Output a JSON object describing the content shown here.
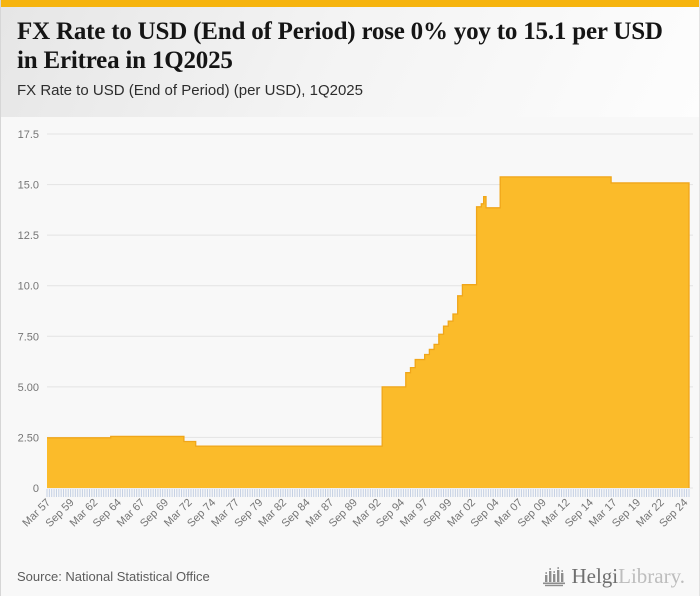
{
  "header": {
    "title": "FX Rate to USD (End of Period) rose 0% yoy to 15.1 per USD in Eritrea in 1Q2025",
    "subtitle": "FX Rate to USD (End of Period) (per USD), 1Q2025"
  },
  "footer": {
    "source": "Source: National Statistical Office",
    "brand": {
      "name": "Helgi",
      "suffix": "Library."
    }
  },
  "colors": {
    "accent_bar": "#F6B40E",
    "area_fill": "#FBBB2A",
    "area_stroke": "#F0A61A",
    "gridline": "#e3e3e3",
    "minor_tick": "#c3cfe3",
    "axis_label": "#757575",
    "logo_gray": "#8d8d8d"
  },
  "chart_data": {
    "type": "area",
    "title": "FX Rate to USD (End of Period) (per USD), 1Q2025",
    "xlabel": "",
    "ylabel": "per USD",
    "ylim": [
      0,
      17.5
    ],
    "x_range": [
      1957.25,
      2025.25
    ],
    "grid": true,
    "legend": "none",
    "y_ticks": [
      {
        "label": "0",
        "value": 0
      },
      {
        "label": "2.50",
        "value": 2.5
      },
      {
        "label": "5.00",
        "value": 5
      },
      {
        "label": "7.50",
        "value": 7.5
      },
      {
        "label": "10.0",
        "value": 10
      },
      {
        "label": "12.5",
        "value": 12.5
      },
      {
        "label": "15.0",
        "value": 15
      },
      {
        "label": "17.5",
        "value": 17.5
      }
    ],
    "x_ticks": [
      {
        "label": "Mar 57",
        "t": 1957.25
      },
      {
        "label": "Sep 59",
        "t": 1959.75
      },
      {
        "label": "Mar 62",
        "t": 1962.25
      },
      {
        "label": "Sep 64",
        "t": 1964.75
      },
      {
        "label": "Mar 67",
        "t": 1967.25
      },
      {
        "label": "Sep 69",
        "t": 1969.75
      },
      {
        "label": "Mar 72",
        "t": 1972.25
      },
      {
        "label": "Sep 74",
        "t": 1974.75
      },
      {
        "label": "Mar 77",
        "t": 1977.25
      },
      {
        "label": "Sep 79",
        "t": 1979.75
      },
      {
        "label": "Mar 82",
        "t": 1982.25
      },
      {
        "label": "Sep 84",
        "t": 1984.75
      },
      {
        "label": "Mar 87",
        "t": 1987.25
      },
      {
        "label": "Sep 89",
        "t": 1989.75
      },
      {
        "label": "Mar 92",
        "t": 1992.25
      },
      {
        "label": "Sep 94",
        "t": 1994.75
      },
      {
        "label": "Mar 97",
        "t": 1997.25
      },
      {
        "label": "Sep 99",
        "t": 1999.75
      },
      {
        "label": "Mar 02",
        "t": 2002.25
      },
      {
        "label": "Sep 04",
        "t": 2004.75
      },
      {
        "label": "Mar 07",
        "t": 2007.25
      },
      {
        "label": "Sep 09",
        "t": 2009.75
      },
      {
        "label": "Mar 12",
        "t": 2012.25
      },
      {
        "label": "Sep 14",
        "t": 2014.75
      },
      {
        "label": "Mar 17",
        "t": 2017.25
      },
      {
        "label": "Sep 19",
        "t": 2019.75
      },
      {
        "label": "Mar 22",
        "t": 2022.25
      },
      {
        "label": "Sep 24",
        "t": 2024.75
      }
    ],
    "series": [
      {
        "name": "FX Rate to USD (End of Period)",
        "unit": "per USD",
        "style": "step-area",
        "breakpoints": [
          [
            1957.25,
            2.48
          ],
          [
            1964.0,
            2.55
          ],
          [
            1971.75,
            2.3
          ],
          [
            1973.0,
            2.07
          ],
          [
            1992.75,
            5.0
          ],
          [
            1995.25,
            5.7
          ],
          [
            1995.75,
            5.95
          ],
          [
            1996.25,
            6.35
          ],
          [
            1997.25,
            6.6
          ],
          [
            1997.75,
            6.85
          ],
          [
            1998.25,
            7.1
          ],
          [
            1998.75,
            7.6
          ],
          [
            1999.25,
            8.0
          ],
          [
            1999.75,
            8.25
          ],
          [
            2000.25,
            8.6
          ],
          [
            2000.75,
            9.5
          ],
          [
            2001.25,
            10.05
          ],
          [
            2002.75,
            13.9
          ],
          [
            2003.25,
            14.05
          ],
          [
            2003.5,
            14.4
          ],
          [
            2003.75,
            13.85
          ],
          [
            2005.25,
            15.38
          ],
          [
            2017.0,
            15.08
          ]
        ],
        "end_t": 2025.25,
        "latest_value": 15.1,
        "latest_period": "1Q2025",
        "yoy_change_pct": 0
      }
    ]
  }
}
